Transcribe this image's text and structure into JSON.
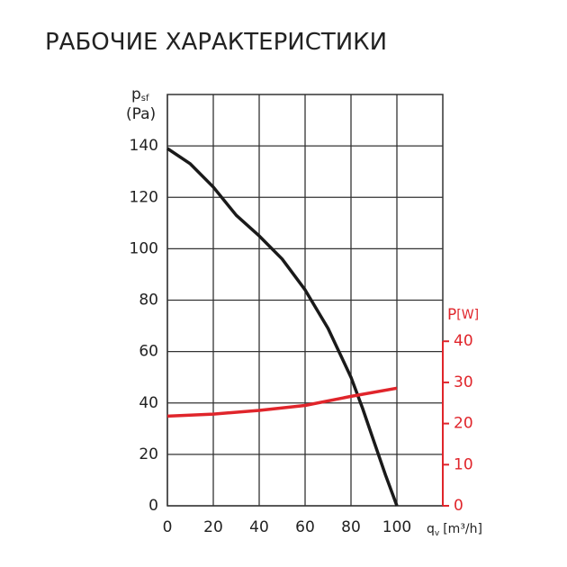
{
  "chart_data": {
    "type": "line",
    "title": "РАБОЧИЕ ХАРАКТЕРИСТИКИ",
    "y_label": {
      "symbol": "p",
      "sub": "sf",
      "unit": "(Pa)"
    },
    "y2_label": {
      "symbol": "P",
      "unit": "[W]"
    },
    "x_label": {
      "symbol": "q",
      "sub": "v",
      "unit": "[m³/h]"
    },
    "xlim": [
      0,
      120
    ],
    "xticks": [
      0,
      20,
      40,
      60,
      80,
      100
    ],
    "ylim": [
      0,
      160
    ],
    "yticks": [
      0,
      20,
      40,
      60,
      80,
      100,
      120,
      140
    ],
    "y2lim": [
      0,
      100
    ],
    "y2ticks": [
      0,
      10,
      20,
      30,
      40
    ],
    "grid": true,
    "series": [
      {
        "name": "p_sf",
        "color": "#1a1a1a",
        "x": [
          0,
          10,
          20,
          30,
          40,
          50,
          60,
          70,
          80,
          85,
          90,
          95,
          100
        ],
        "values": [
          139,
          133,
          124,
          113,
          105,
          96,
          84,
          69,
          50,
          38,
          25,
          12,
          0
        ]
      },
      {
        "name": "P",
        "color": "#e0252b",
        "axis": "y2",
        "x": [
          0,
          20,
          40,
          60,
          80,
          100
        ],
        "values": [
          21.8,
          22.3,
          23.2,
          24.4,
          26.6,
          28.6
        ]
      }
    ]
  }
}
